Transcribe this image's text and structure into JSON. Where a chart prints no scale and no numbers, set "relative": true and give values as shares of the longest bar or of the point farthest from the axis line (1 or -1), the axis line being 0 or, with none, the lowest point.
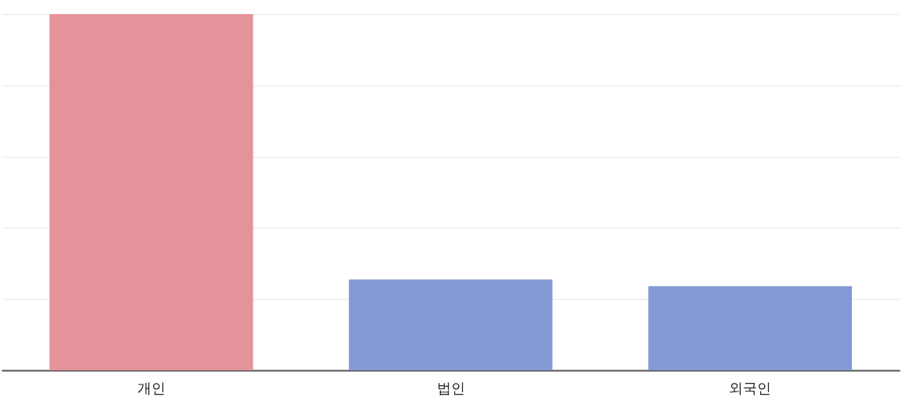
{
  "chart_data": {
    "type": "bar",
    "relative": true,
    "categories": [
      "개인",
      "법인",
      "외국인"
    ],
    "values": [
      1,
      0.255,
      0.236
    ],
    "colors": [
      "#e4939a",
      "#8399d6",
      "#8399d6"
    ],
    "grid": "y",
    "legend": false
  }
}
